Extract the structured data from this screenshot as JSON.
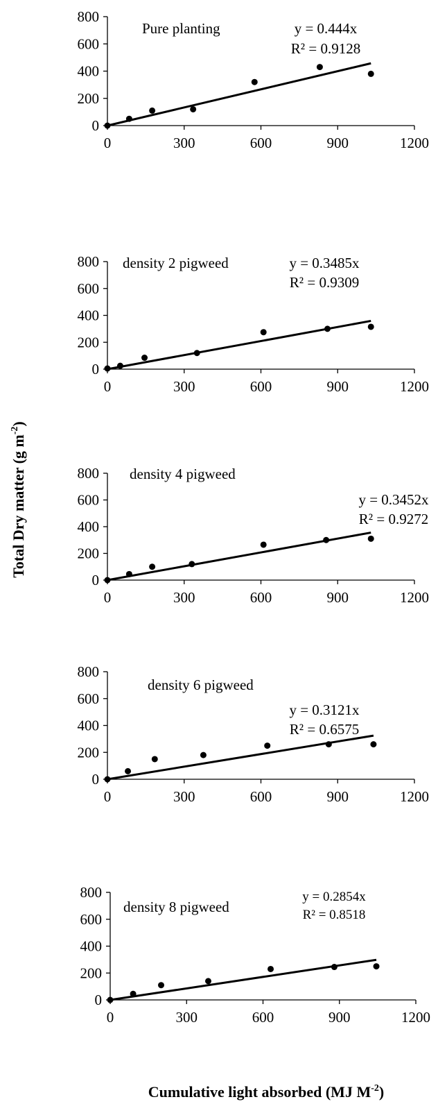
{
  "y_axis_title": {
    "main": "Total Dry matter  (g m",
    "sup": "-2",
    "close": ")"
  },
  "x_axis_title": {
    "main": "Cumulative light absorbed (MJ M",
    "sup": "-2",
    "close": ")"
  },
  "chart_data": [
    {
      "type": "scatter",
      "title": "Pure planting",
      "equation": "y = 0.444x",
      "r2": "R² = 0.9128",
      "slope": 0.444,
      "x": [
        0,
        85,
        175,
        335,
        575,
        830,
        1030
      ],
      "y": [
        0,
        50,
        110,
        120,
        320,
        430,
        380
      ],
      "xlim": [
        0,
        1200
      ],
      "ylim": [
        0,
        800
      ],
      "xticks": [
        0,
        300,
        600,
        900,
        1200
      ],
      "yticks": [
        0,
        200,
        400,
        600,
        800
      ],
      "trendline": true
    },
    {
      "type": "scatter",
      "title": "density 2 pigweed",
      "equation": "y = 0.3485x",
      "r2": "R² = 0.9309",
      "slope": 0.3485,
      "x": [
        0,
        50,
        145,
        350,
        610,
        860,
        1030
      ],
      "y": [
        5,
        25,
        85,
        120,
        275,
        300,
        315
      ],
      "xlim": [
        0,
        1200
      ],
      "ylim": [
        0,
        800
      ],
      "xticks": [
        0,
        300,
        600,
        900,
        1200
      ],
      "yticks": [
        0,
        200,
        400,
        600,
        800
      ],
      "trendline": true
    },
    {
      "type": "scatter",
      "title": "density 4 pigweed",
      "equation": "y = 0.3452x",
      "r2": "R² = 0.9272",
      "slope": 0.3452,
      "x": [
        0,
        85,
        175,
        330,
        610,
        855,
        1030
      ],
      "y": [
        0,
        45,
        100,
        120,
        265,
        300,
        310
      ],
      "xlim": [
        0,
        1200
      ],
      "ylim": [
        0,
        800
      ],
      "xticks": [
        0,
        300,
        600,
        900,
        1200
      ],
      "yticks": [
        0,
        200,
        400,
        600,
        800
      ],
      "trendline": true
    },
    {
      "type": "scatter",
      "title": "density 6 pigweed",
      "equation": "y = 0.3121x",
      "r2": "R² = 0.6575",
      "slope": 0.3121,
      "x": [
        0,
        80,
        185,
        375,
        625,
        865,
        1040
      ],
      "y": [
        0,
        60,
        150,
        180,
        250,
        260,
        260
      ],
      "xlim": [
        0,
        1200
      ],
      "ylim": [
        0,
        800
      ],
      "xticks": [
        0,
        300,
        600,
        900,
        1200
      ],
      "yticks": [
        0,
        200,
        400,
        600,
        800
      ],
      "trendline": true
    },
    {
      "type": "scatter",
      "title": "density 8 pigweed",
      "equation": "y = 0.2854x",
      "r2": "R² = 0.8518",
      "slope": 0.2854,
      "x": [
        0,
        90,
        200,
        385,
        630,
        880,
        1045
      ],
      "y": [
        0,
        45,
        110,
        140,
        230,
        245,
        250
      ],
      "xlim": [
        0,
        1200
      ],
      "ylim": [
        0,
        800
      ],
      "xticks": [
        0,
        300,
        600,
        900,
        1200
      ],
      "yticks": [
        0,
        200,
        400,
        600,
        800
      ],
      "trendline": true
    }
  ]
}
